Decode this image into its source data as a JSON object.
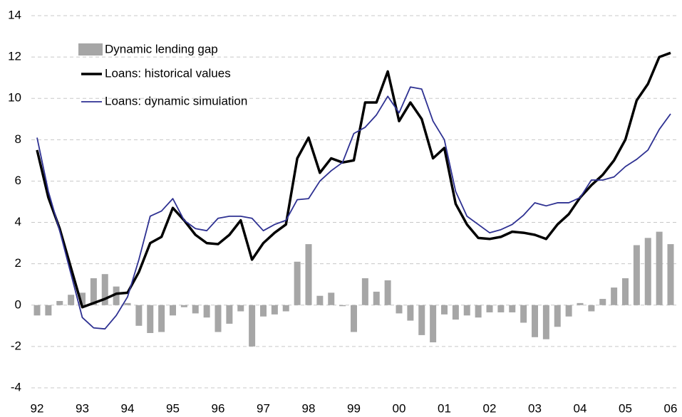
{
  "chart_data": {
    "type": "bar",
    "categories": [
      "92",
      null,
      null,
      null,
      "93",
      null,
      null,
      null,
      "94",
      null,
      null,
      null,
      "95",
      null,
      null,
      null,
      "96",
      null,
      null,
      null,
      "97",
      null,
      null,
      null,
      "98",
      null,
      null,
      null,
      "99",
      null,
      null,
      null,
      "00",
      null,
      null,
      null,
      "01",
      null,
      null,
      null,
      "02",
      null,
      null,
      null,
      "03",
      null,
      null,
      null,
      "04",
      null,
      null,
      null,
      "05",
      null,
      null,
      null,
      "06"
    ],
    "series": [
      {
        "name": "Dynamic lending gap",
        "type": "bar",
        "color": "#a6a6a6",
        "values": [
          -0.5,
          -0.5,
          0.2,
          0.5,
          0.6,
          1.3,
          1.5,
          0.9,
          0.1,
          -1.0,
          -1.35,
          -1.3,
          -0.5,
          -0.1,
          -0.4,
          -0.6,
          -1.3,
          -0.9,
          -0.3,
          -2.0,
          -0.55,
          -0.45,
          -0.3,
          2.1,
          2.95,
          0.45,
          0.6,
          -0.05,
          -1.3,
          1.3,
          0.65,
          1.2,
          -0.4,
          -0.75,
          -1.45,
          -1.8,
          -0.45,
          -0.7,
          -0.5,
          -0.6,
          -0.35,
          -0.35,
          -0.35,
          -0.85,
          -1.55,
          -1.65,
          -1.05,
          -0.55,
          0.1,
          -0.3,
          0.3,
          0.85,
          1.3,
          2.9,
          3.25,
          3.55,
          2.95
        ]
      },
      {
        "name": "Loans: historical values",
        "type": "line",
        "color": "#000000",
        "values": [
          7.5,
          5.2,
          3.7,
          1.8,
          -0.1,
          0.1,
          0.3,
          0.55,
          0.6,
          1.6,
          3.0,
          3.3,
          4.7,
          4.1,
          3.4,
          3.0,
          2.95,
          3.4,
          4.1,
          2.2,
          3.0,
          3.5,
          3.9,
          7.1,
          8.1,
          6.4,
          7.1,
          6.9,
          7.0,
          9.8,
          9.8,
          11.3,
          8.9,
          9.8,
          9.0,
          7.1,
          7.6,
          4.9,
          3.9,
          3.25,
          3.2,
          3.3,
          3.55,
          3.5,
          3.4,
          3.2,
          3.9,
          4.4,
          5.2,
          5.8,
          6.3,
          7.0,
          8.0,
          9.9,
          10.7,
          12.0,
          12.2
        ]
      },
      {
        "name": "Loans: dynamic simulation",
        "type": "line",
        "color": "#2e3192",
        "values": [
          8.1,
          5.5,
          3.6,
          1.5,
          -0.6,
          -1.1,
          -1.15,
          -0.5,
          0.4,
          2.2,
          4.3,
          4.55,
          5.15,
          4.1,
          3.7,
          3.6,
          4.2,
          4.3,
          4.3,
          4.2,
          3.6,
          3.9,
          4.1,
          5.1,
          5.15,
          6.0,
          6.5,
          6.9,
          8.3,
          8.6,
          9.2,
          10.1,
          9.3,
          10.55,
          10.45,
          8.9,
          8.0,
          5.5,
          4.3,
          3.9,
          3.5,
          3.65,
          3.9,
          4.35,
          4.95,
          4.8,
          4.95,
          4.95,
          5.2,
          6.05,
          6.05,
          6.2,
          6.7,
          7.05,
          7.5,
          8.5,
          9.25
        ]
      }
    ],
    "ylim": [
      -4,
      14
    ],
    "yticks": [
      -4,
      -2,
      0,
      2,
      4,
      6,
      8,
      10,
      12,
      14
    ],
    "grid": true
  }
}
